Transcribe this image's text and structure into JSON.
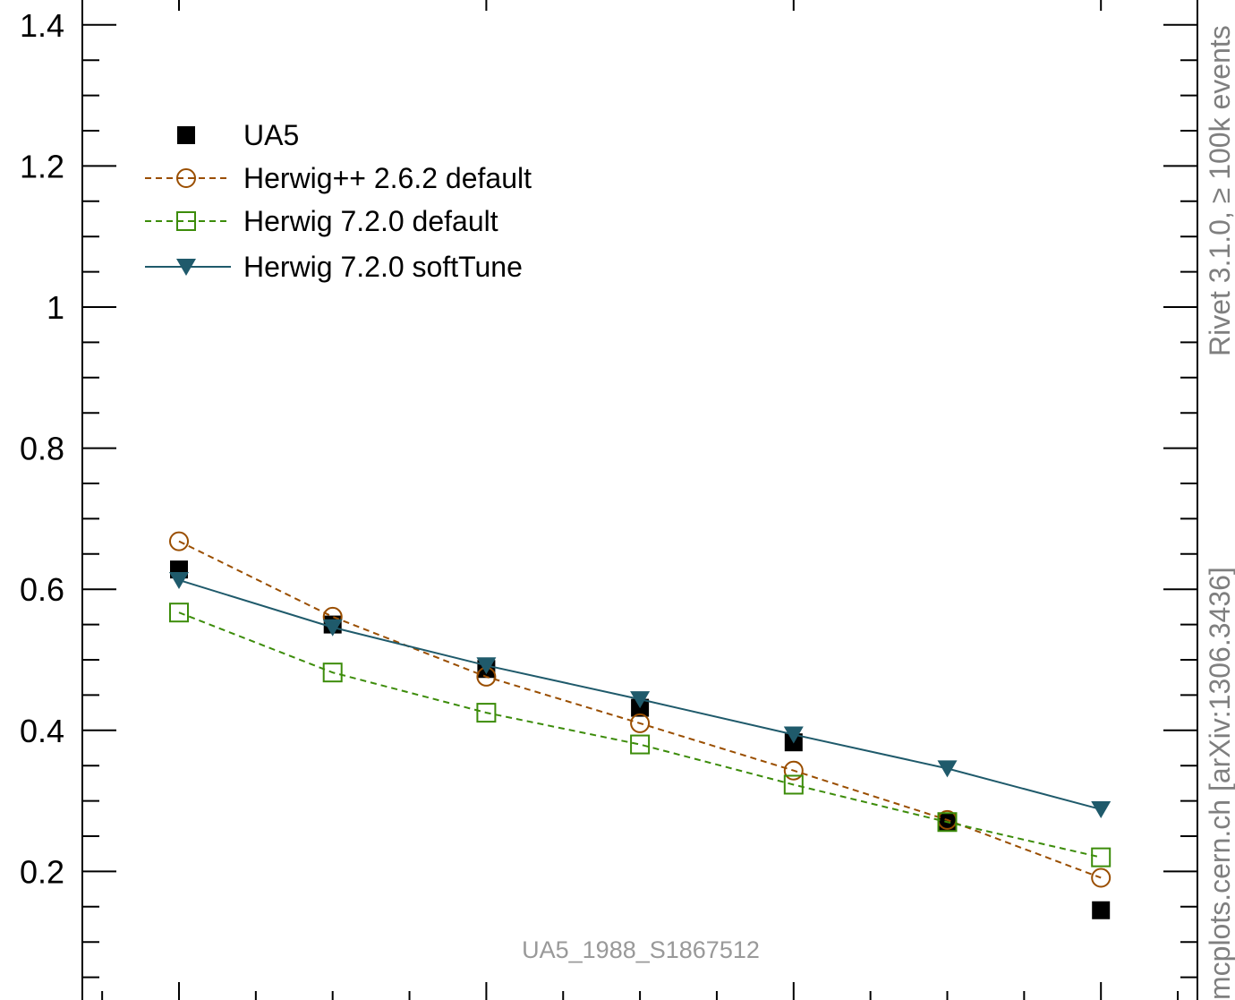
{
  "chart_data": {
    "type": "scatter",
    "title": "",
    "xlabel": "",
    "ylabel": "",
    "x": [
      1,
      2,
      3,
      4,
      5,
      6,
      7
    ],
    "ylim": [
      0,
      1.44
    ],
    "y_ticks": [
      "0.2",
      "0.4",
      "0.6",
      "0.8",
      "1",
      "1.2",
      "1.4"
    ],
    "legend_position": "top-left",
    "series": [
      {
        "name": "UA5",
        "marker": "filled-square",
        "line": "none",
        "color": "#000000",
        "values": [
          0.628,
          0.55,
          0.487,
          0.432,
          0.383,
          0.27,
          0.145
        ]
      },
      {
        "name": "Herwig++ 2.6.2 default",
        "marker": "open-circle",
        "line": "dashed",
        "color": "#9a4e00",
        "values": [
          0.668,
          0.561,
          0.476,
          0.41,
          0.343,
          0.273,
          0.191
        ]
      },
      {
        "name": "Herwig 7.2.0 default",
        "marker": "open-square",
        "line": "dashed",
        "color": "#3c8c0a",
        "values": [
          0.567,
          0.482,
          0.425,
          0.38,
          0.323,
          0.27,
          0.22
        ]
      },
      {
        "name": "Herwig 7.2.0 softTune",
        "marker": "filled-triangle-down",
        "line": "solid",
        "color": "#1f5a6b",
        "values": [
          0.613,
          0.546,
          0.492,
          0.444,
          0.394,
          0.346,
          0.288
        ]
      }
    ],
    "annotations": {
      "analysis_id": "UA5_1988_S1867512",
      "rivet_info": "Rivet 3.1.0, ≥ 100k events",
      "mcplots_info": "mcplots.cern.ch [arXiv:1306.3436]"
    }
  }
}
